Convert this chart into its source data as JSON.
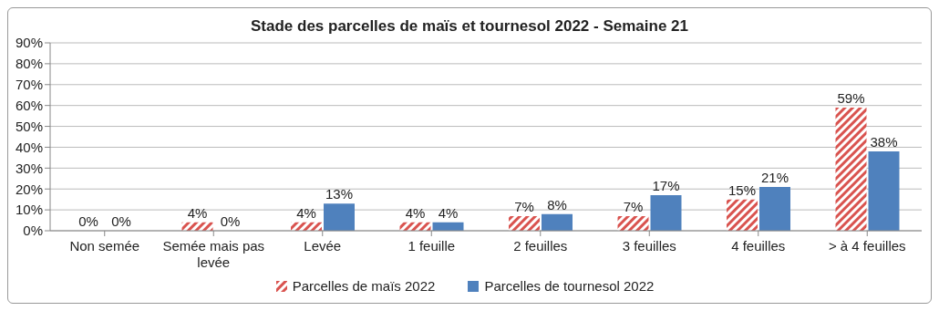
{
  "chart_data": {
    "type": "bar",
    "title": "Stade des parcelles de maïs et tournesol 2022 - Semaine 21",
    "categories": [
      "Non semée",
      "Semée mais pas levée",
      "Levée",
      "1 feuille",
      "2 feuilles",
      "3 feuilles",
      "4 feuilles",
      "> à 4 feuilles"
    ],
    "series": [
      {
        "name": "Parcelles de maïs 2022",
        "color": "#d9534f",
        "values": [
          0,
          4,
          4,
          4,
          7,
          7,
          15,
          59
        ],
        "value_labels": [
          "0%",
          "4%",
          "4%",
          "4%",
          "7%",
          "7%",
          "15%",
          "59%"
        ]
      },
      {
        "name": "Parcelles de tournesol 2022",
        "color": "#4f81bd",
        "values": [
          0,
          0,
          13,
          4,
          8,
          17,
          21,
          38
        ],
        "value_labels": [
          "0%",
          "0%",
          "13%",
          "4%",
          "8%",
          "17%",
          "21%",
          "38%"
        ]
      }
    ],
    "ylim": [
      0,
      90
    ],
    "yticks": [
      {
        "value": 0,
        "label": "0%"
      },
      {
        "value": 10,
        "label": "10%"
      },
      {
        "value": 20,
        "label": "20%"
      },
      {
        "value": 30,
        "label": "30%"
      },
      {
        "value": 40,
        "label": "40%"
      },
      {
        "value": 50,
        "label": "50%"
      },
      {
        "value": 60,
        "label": "60%"
      },
      {
        "value": 70,
        "label": "70%"
      },
      {
        "value": 80,
        "label": "80%"
      },
      {
        "value": 90,
        "label": "90%"
      }
    ],
    "grid": "y",
    "legend": "bottom"
  }
}
